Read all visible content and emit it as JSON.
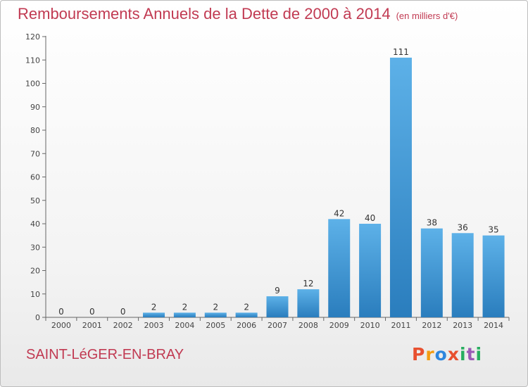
{
  "page": {
    "title": "Remboursements Annuels de la Dette de 2000 à 2014",
    "title_unit": "(en milliers d'€)",
    "town": "SAINT-LéGER-EN-BRAY",
    "brand": "Proxiti",
    "brand_colors": [
      "#e8502f",
      "#f39c12",
      "#2e86de",
      "#e8502f",
      "#27ae60",
      "#9b59b6",
      "#27ae60"
    ]
  },
  "chart_data": {
    "type": "bar",
    "title": "Remboursements Annuels de la Dette de 2000 à 2014",
    "unit": "(en milliers d'€)",
    "categories": [
      "2000",
      "2001",
      "2002",
      "2003",
      "2004",
      "2005",
      "2006",
      "2007",
      "2008",
      "2009",
      "2010",
      "2011",
      "2012",
      "2013",
      "2014"
    ],
    "values": [
      0,
      0,
      0,
      2,
      2,
      2,
      2,
      9,
      12,
      42,
      40,
      111,
      38,
      36,
      35
    ],
    "ylim": [
      0,
      120
    ],
    "yticks": [
      0,
      10,
      20,
      30,
      40,
      50,
      60,
      70,
      80,
      90,
      100,
      110,
      120
    ],
    "grid": false,
    "legend": "none",
    "bar_color": "#4a9fdc"
  }
}
